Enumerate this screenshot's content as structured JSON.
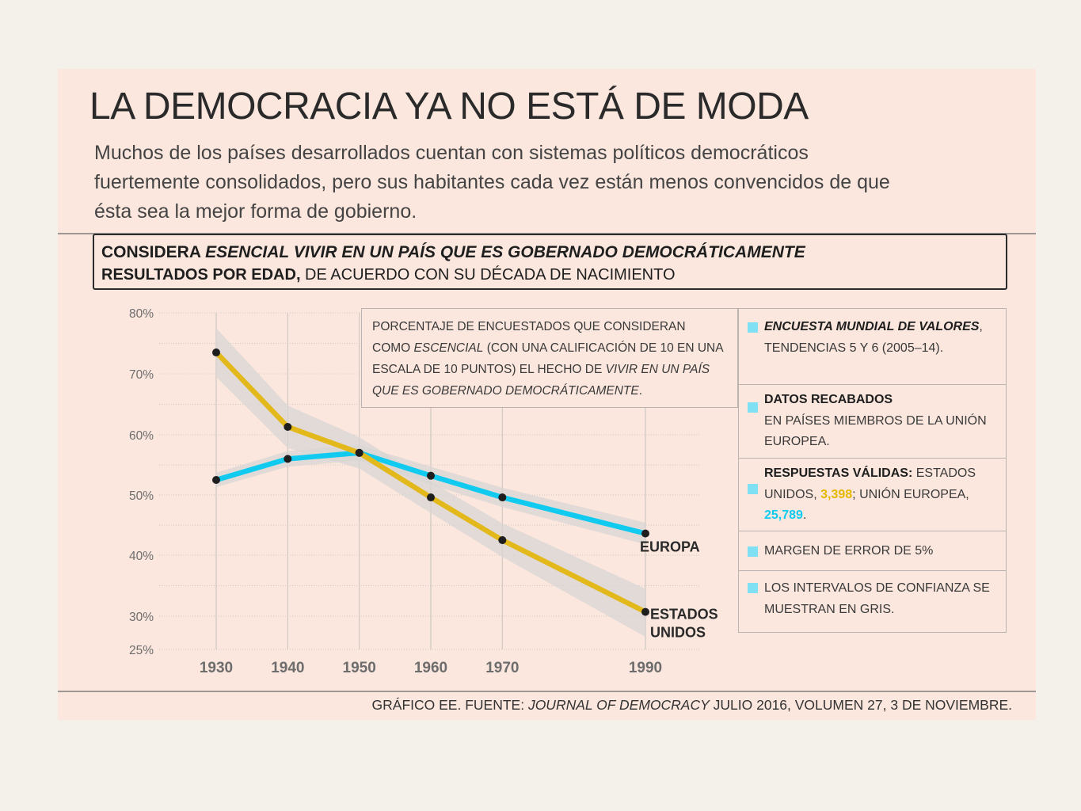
{
  "title": "LA DEMOCRACIA YA NO ESTÁ DE MODA",
  "subtitle": "Muchos de los países desarrollados cuentan con sistemas políticos democráticos fuertemente consolidados, pero sus habitantes cada vez están menos convencidos de que ésta sea la mejor forma de gobierno.",
  "header": {
    "line1_bold": "CONSIDERA ",
    "line1_italic": "ESENCIAL VIVIR EN UN PAÍS QUE ES GOBERNADO DEMOCRÁTICAMENTE",
    "line2_bold": "RESULTADOS POR EDAD,",
    "line2_rest": " DE ACUERDO CON SU DÉCADA DE NACIMIENTO"
  },
  "note": {
    "p1": "PORCENTAJE DE ENCUESTADOS QUE CONSIDERAN COMO ",
    "p1_italic": "ESCENCIAL",
    "p2": " (CON UNA CALIFICACIÓN DE 10 EN UNA ESCALA DE 10 PUNTOS) EL HECHO DE ",
    "p2_italic": "VIVIR EN UN PAÍS QUE ES GOBERNADO DEMOCRÁTICAMENTE",
    "p3": "."
  },
  "legend": {
    "item1_bold_italic": "ENCUESTA MUNDIAL DE VALORES",
    "item1_rest": ", TENDENCIAS 5 Y 6 (2005–14).",
    "item2_bold": "DATOS RECABADOS",
    "item2_rest": "EN PAÍSES MIEMBROS DE LA UNIÓN EUROPEA.",
    "item3_bold": "RESPUESTAS VÁLIDAS:",
    "item3_a": " ESTADOS UNIDOS, ",
    "item3_us": "3,398",
    "item3_b": "; UNIÓN EUROPEA, ",
    "item3_eu": "25,789",
    "item3_c": ".",
    "item4": "MARGEN DE ERROR DE 5%",
    "item5": "LOS INTERVALOS DE CONFIANZA SE MUESTRAN EN GRIS."
  },
  "footer": {
    "a": "GRÁFICO EE. FUENTE: ",
    "italic": "JOURNAL OF DEMOCRACY",
    "b": " JULIO 2016, VOLUMEN 27, 3 DE NOVIEMBRE."
  },
  "colors": {
    "us": "#e3b81b",
    "eu": "#10cbef",
    "ci": "#d8d6d4",
    "accent_square": "#7fe0f3"
  },
  "chart_data": {
    "type": "line",
    "x": [
      1930,
      1940,
      1950,
      1960,
      1970,
      1990
    ],
    "x_ticks": [
      "1930",
      "1940",
      "1950",
      "1960",
      "1970",
      "1990"
    ],
    "y_ticks": [
      {
        "value": 80,
        "label": "80%"
      },
      {
        "value": 70,
        "label": "70%"
      },
      {
        "value": 60,
        "label": "60%"
      },
      {
        "value": 50,
        "label": "50%"
      },
      {
        "value": 40,
        "label": "40%"
      },
      {
        "value": 30,
        "label": "30%"
      },
      {
        "value": 25,
        "label": "25%"
      }
    ],
    "ylim": [
      25,
      80
    ],
    "grid": true,
    "series": [
      {
        "key": "eu",
        "name": "EUROPA",
        "values": [
          52.5,
          56,
          57,
          53.2,
          49.6,
          43.6
        ],
        "ci_half": [
          1.2,
          1.3,
          1.3,
          1.5,
          1.6,
          1.8
        ]
      },
      {
        "key": "us",
        "name": "ESTADOS UNIDOS",
        "values": [
          73.5,
          61.3,
          57,
          49.6,
          42.5,
          30.7
        ],
        "ci_half": [
          4.0,
          3.5,
          2.6,
          2.6,
          2.8,
          3.8
        ]
      }
    ]
  }
}
